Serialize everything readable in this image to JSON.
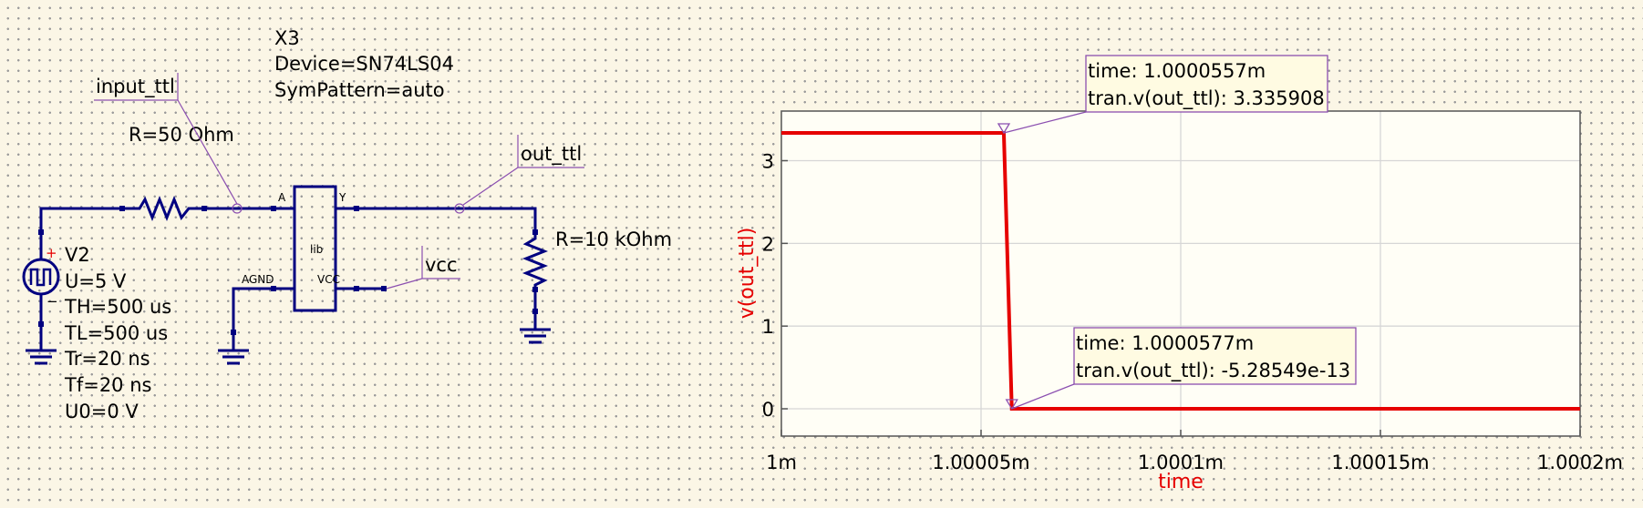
{
  "schematic": {
    "x3_component": {
      "name": "X3",
      "device": "Device=SN74LS04",
      "sympattern": "SymPattern=auto",
      "block_label": "lib"
    },
    "pins": {
      "a": "A",
      "y": "Y",
      "agnd": "AGND",
      "vcc": "VCC"
    },
    "nets": {
      "input": "input_ttl",
      "output": "out_ttl",
      "vcc": "vcc"
    },
    "input_resistor": {
      "value": "R=50 Ohm"
    },
    "load_resistor": {
      "value": "R=10 kOhm"
    },
    "source": {
      "name": "V2",
      "params": [
        "U=5 V",
        "TH=500 us",
        "TL=500 us",
        "Tr=20 ns",
        "Tf=20 ns",
        "U0=0 V"
      ],
      "plus": "+",
      "minus": "−"
    }
  },
  "colors": {
    "wire": "#000080",
    "trace": "#e60000",
    "marker_line": "#8b4fb0",
    "background": "#fbf6e6"
  },
  "chart_data": {
    "type": "line",
    "xlabel": "time",
    "ylabel": "v(out_ttl)",
    "xlim": [
      0.001,
      0.0010002
    ],
    "ylim": [
      -0.33,
      3.6
    ],
    "xticks": [
      0.001,
      0.00100005,
      0.0010001,
      0.00100015,
      0.0010002
    ],
    "xtick_labels": [
      "1m",
      "1.00005m",
      "1.0001m",
      "1.00015m",
      "1.0002m"
    ],
    "yticks": [
      0,
      1,
      2,
      3
    ],
    "ytick_labels": [
      "0",
      "1",
      "2",
      "3"
    ],
    "grid": true,
    "series": [
      {
        "x": [
          0.001,
          0.0010000557,
          0.0010000577,
          0.0010002
        ],
        "y": [
          3.335908,
          3.335908,
          0,
          0
        ],
        "color": "#e60000"
      }
    ],
    "markers": [
      {
        "x": 0.0010000557,
        "y": 3.335908,
        "time_text": "time: 1.0000557m",
        "value_text": "tran.v(out_ttl): 3.335908"
      },
      {
        "x": 0.0010000577,
        "y": 0,
        "time_text": "time: 1.0000577m",
        "value_text": "tran.v(out_ttl): -5.28549e-13"
      }
    ]
  }
}
